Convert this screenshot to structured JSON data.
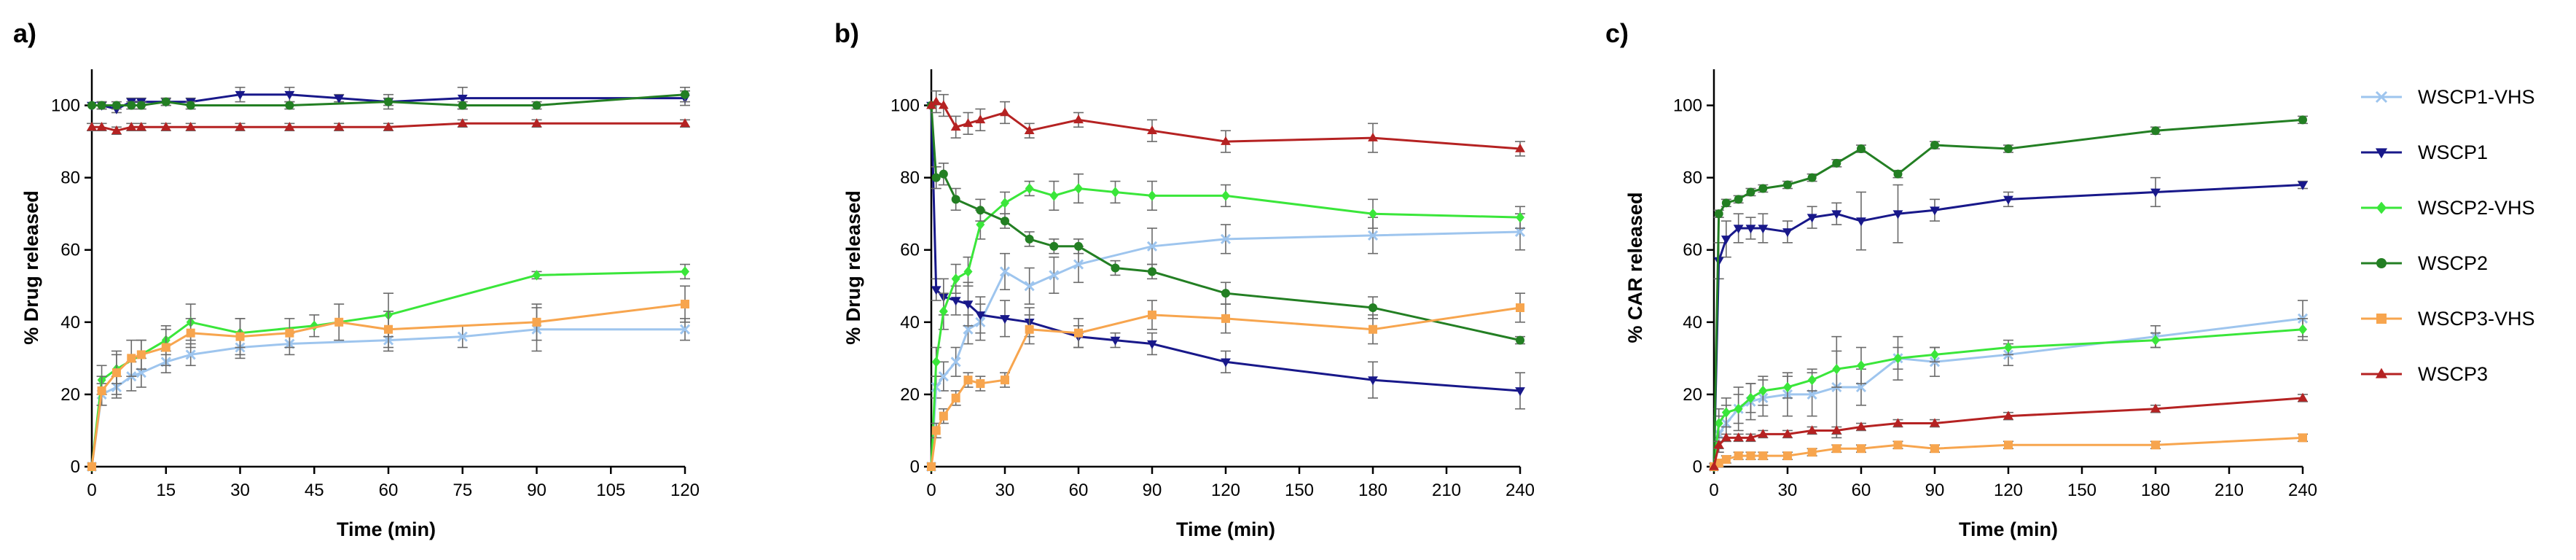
{
  "chart_data": [
    {
      "type": "line",
      "panel_label": "a)",
      "xlabel": "Time (min)",
      "ylabel": "% Drug released",
      "xlim": [
        0,
        120
      ],
      "ylim": [
        0,
        110
      ],
      "xticks": [
        0,
        15,
        30,
        45,
        60,
        75,
        90,
        105,
        120
      ],
      "yticks": [
        0,
        20,
        40,
        60,
        80,
        100
      ],
      "series": [
        {
          "name": "WSCP1-VHS",
          "x": [
            0,
            2,
            5,
            8,
            10,
            15,
            20,
            30,
            40,
            60,
            75,
            90,
            120
          ],
          "y": [
            0,
            20,
            22,
            25,
            26,
            29,
            31,
            33,
            34,
            35,
            36,
            38,
            38
          ],
          "err": [
            0,
            3,
            3,
            4,
            4,
            3,
            3,
            3,
            3,
            3,
            3,
            6,
            3
          ]
        },
        {
          "name": "WSCP1",
          "x": [
            0,
            2,
            5,
            8,
            10,
            15,
            20,
            30,
            40,
            50,
            60,
            75,
            120
          ],
          "y": [
            100,
            100,
            99,
            101,
            101,
            101,
            101,
            103,
            103,
            102,
            101,
            102,
            102
          ],
          "err": [
            0,
            1,
            1,
            1,
            1,
            1,
            1,
            2,
            2,
            1,
            2,
            3,
            2
          ]
        },
        {
          "name": "WSCP2-VHS",
          "x": [
            0,
            2,
            5,
            10,
            15,
            20,
            30,
            45,
            60,
            90,
            120
          ],
          "y": [
            0,
            24,
            27,
            31,
            35,
            40,
            37,
            39,
            42,
            53,
            54
          ],
          "err": [
            0,
            4,
            4,
            4,
            4,
            5,
            4,
            3,
            6,
            1,
            2
          ]
        },
        {
          "name": "WSCP2",
          "x": [
            0,
            2,
            5,
            8,
            10,
            15,
            20,
            40,
            60,
            75,
            90,
            120
          ],
          "y": [
            100,
            100,
            100,
            100,
            100,
            101,
            100,
            100,
            101,
            100,
            100,
            103
          ],
          "err": [
            0,
            1,
            1,
            1,
            1,
            1,
            1,
            1,
            1,
            1,
            1,
            2
          ]
        },
        {
          "name": "WSCP3-VHS",
          "x": [
            0,
            2,
            5,
            8,
            10,
            15,
            20,
            30,
            40,
            50,
            60,
            90,
            120
          ],
          "y": [
            0,
            21,
            26,
            30,
            31,
            33,
            37,
            36,
            37,
            40,
            38,
            40,
            45
          ],
          "err": [
            0,
            4,
            6,
            5,
            4,
            5,
            4,
            5,
            4,
            5,
            5,
            5,
            5
          ]
        },
        {
          "name": "WSCP3",
          "x": [
            0,
            2,
            5,
            8,
            10,
            15,
            20,
            30,
            40,
            50,
            60,
            75,
            90,
            120
          ],
          "y": [
            94,
            94,
            93,
            94,
            94,
            94,
            94,
            94,
            94,
            94,
            94,
            95,
            95,
            95
          ],
          "err": [
            1,
            1,
            1,
            1,
            1,
            1,
            1,
            1,
            1,
            1,
            1,
            1,
            1,
            1
          ]
        }
      ]
    },
    {
      "type": "line",
      "panel_label": "b)",
      "xlabel": "Time (min)",
      "ylabel": "% Drug released",
      "xlim": [
        0,
        240
      ],
      "ylim": [
        0,
        110
      ],
      "xticks": [
        0,
        30,
        60,
        90,
        120,
        150,
        180,
        210,
        240
      ],
      "yticks": [
        0,
        20,
        40,
        60,
        80,
        100
      ],
      "series": [
        {
          "name": "WSCP1-VHS",
          "x": [
            0,
            2,
            5,
            10,
            15,
            20,
            30,
            40,
            50,
            60,
            90,
            120,
            180,
            240
          ],
          "y": [
            0,
            22,
            25,
            29,
            38,
            40,
            54,
            50,
            53,
            56,
            61,
            63,
            64,
            65
          ],
          "err": [
            0,
            3,
            4,
            4,
            4,
            5,
            5,
            5,
            5,
            5,
            5,
            4,
            5,
            5
          ]
        },
        {
          "name": "WSCP1",
          "x": [
            0,
            2,
            5,
            10,
            15,
            20,
            30,
            40,
            60,
            75,
            90,
            120,
            180,
            240
          ],
          "y": [
            100,
            49,
            47,
            46,
            45,
            42,
            41,
            40,
            36,
            35,
            34,
            29,
            24,
            21
          ],
          "err": [
            0,
            3,
            5,
            4,
            6,
            5,
            5,
            4,
            3,
            2,
            3,
            3,
            5,
            5
          ]
        },
        {
          "name": "WSCP2-VHS",
          "x": [
            0,
            2,
            5,
            10,
            15,
            20,
            30,
            40,
            50,
            60,
            75,
            90,
            120,
            180,
            240
          ],
          "y": [
            0,
            29,
            43,
            52,
            54,
            67,
            73,
            77,
            75,
            77,
            76,
            75,
            75,
            70,
            69
          ],
          "err": [
            0,
            4,
            5,
            4,
            4,
            4,
            3,
            2,
            4,
            4,
            3,
            4,
            3,
            4,
            3
          ]
        },
        {
          "name": "WSCP2",
          "x": [
            0,
            2,
            5,
            10,
            20,
            30,
            40,
            50,
            60,
            75,
            90,
            120,
            180,
            240
          ],
          "y": [
            100,
            80,
            81,
            74,
            71,
            68,
            63,
            61,
            61,
            55,
            54,
            48,
            44,
            35
          ],
          "err": [
            0,
            3,
            3,
            3,
            3,
            2,
            2,
            2,
            2,
            2,
            2,
            3,
            3,
            1
          ]
        },
        {
          "name": "WSCP3-VHS",
          "x": [
            0,
            2,
            5,
            10,
            15,
            20,
            30,
            40,
            60,
            90,
            120,
            180,
            240
          ],
          "y": [
            0,
            10,
            14,
            19,
            24,
            23,
            24,
            38,
            37,
            42,
            41,
            38,
            44
          ],
          "err": [
            0,
            2,
            2,
            2,
            2,
            2,
            2,
            4,
            4,
            4,
            4,
            4,
            4
          ]
        },
        {
          "name": "WSCP3",
          "x": [
            0,
            2,
            5,
            10,
            15,
            20,
            30,
            40,
            60,
            90,
            120,
            180,
            240
          ],
          "y": [
            100,
            101,
            100,
            94,
            95,
            96,
            98,
            93,
            96,
            93,
            90,
            91,
            88
          ],
          "err": [
            0,
            3,
            3,
            3,
            3,
            3,
            3,
            2,
            2,
            3,
            3,
            4,
            2
          ]
        }
      ]
    },
    {
      "type": "line",
      "panel_label": "c)",
      "xlabel": "Time (min)",
      "ylabel": "% CAR released",
      "xlim": [
        0,
        240
      ],
      "ylim": [
        0,
        110
      ],
      "xticks": [
        0,
        30,
        60,
        90,
        120,
        150,
        180,
        210,
        240
      ],
      "yticks": [
        0,
        20,
        40,
        60,
        80,
        100
      ],
      "series": [
        {
          "name": "WSCP1-VHS",
          "x": [
            0,
            2,
            5,
            10,
            15,
            20,
            30,
            40,
            50,
            60,
            75,
            90,
            120,
            180,
            240
          ],
          "y": [
            0,
            9,
            12,
            16,
            18,
            19,
            20,
            20,
            22,
            22,
            30,
            29,
            31,
            36,
            41
          ],
          "err": [
            0,
            5,
            5,
            6,
            5,
            5,
            6,
            6,
            14,
            5,
            6,
            4,
            3,
            3,
            5
          ]
        },
        {
          "name": "WSCP1",
          "x": [
            0,
            2,
            5,
            10,
            15,
            20,
            30,
            40,
            50,
            60,
            75,
            90,
            120,
            180,
            240
          ],
          "y": [
            0,
            57,
            63,
            66,
            66,
            66,
            65,
            69,
            70,
            68,
            70,
            71,
            74,
            76,
            78
          ],
          "err": [
            0,
            5,
            5,
            4,
            3,
            4,
            3,
            3,
            3,
            8,
            8,
            3,
            2,
            4,
            1
          ]
        },
        {
          "name": "WSCP2-VHS",
          "x": [
            0,
            2,
            5,
            10,
            15,
            20,
            30,
            40,
            50,
            60,
            75,
            90,
            120,
            180,
            240
          ],
          "y": [
            0,
            12,
            15,
            16,
            19,
            21,
            22,
            24,
            27,
            28,
            30,
            31,
            33,
            35,
            38
          ],
          "err": [
            0,
            4,
            4,
            4,
            4,
            4,
            3,
            3,
            5,
            5,
            3,
            2,
            2,
            2,
            3
          ]
        },
        {
          "name": "WSCP2",
          "x": [
            0,
            2,
            5,
            10,
            15,
            20,
            30,
            40,
            50,
            60,
            75,
            90,
            120,
            180,
            240
          ],
          "y": [
            0,
            70,
            73,
            74,
            76,
            77,
            78,
            80,
            84,
            88,
            81,
            89,
            88,
            93,
            96
          ],
          "err": [
            0,
            1,
            1,
            1,
            1,
            1,
            1,
            1,
            1,
            1,
            1,
            1,
            1,
            1,
            1
          ]
        },
        {
          "name": "WSCP3-VHS",
          "x": [
            0,
            2,
            5,
            10,
            15,
            20,
            30,
            40,
            50,
            60,
            75,
            90,
            120,
            180,
            240
          ],
          "y": [
            0,
            1,
            2,
            3,
            3,
            3,
            3,
            4,
            5,
            5,
            6,
            5,
            6,
            6,
            8
          ],
          "err": [
            0,
            1,
            1,
            1,
            1,
            1,
            1,
            1,
            1,
            1,
            1,
            1,
            1,
            1,
            1
          ]
        },
        {
          "name": "WSCP3",
          "x": [
            0,
            2,
            5,
            10,
            15,
            20,
            30,
            40,
            50,
            60,
            75,
            90,
            120,
            180,
            240
          ],
          "y": [
            0,
            6,
            8,
            8,
            8,
            9,
            9,
            10,
            10,
            11,
            12,
            12,
            14,
            16,
            19
          ],
          "err": [
            0,
            1,
            1,
            1,
            1,
            1,
            1,
            1,
            1,
            1,
            1,
            1,
            1,
            1,
            1
          ]
        }
      ]
    }
  ],
  "legend": {
    "placement": "right",
    "entries": [
      {
        "name": "WSCP1-VHS",
        "color": "#9ec5ee",
        "marker": "x"
      },
      {
        "name": "WSCP1",
        "color": "#18188a",
        "marker": "triangle-down"
      },
      {
        "name": "WSCP2-VHS",
        "color": "#3ae63a",
        "marker": "diamond"
      },
      {
        "name": "WSCP2",
        "color": "#237f23",
        "marker": "circle"
      },
      {
        "name": "WSCP3-VHS",
        "color": "#f7a54e",
        "marker": "square"
      },
      {
        "name": "WSCP3",
        "color": "#b52222",
        "marker": "triangle-up"
      }
    ]
  }
}
